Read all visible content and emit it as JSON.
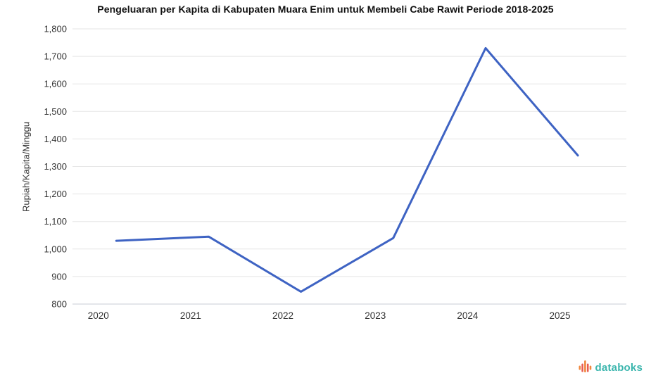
{
  "chart_data": {
    "type": "line",
    "title": "Pengeluaran per Kapita di Kabupaten Muara Enim untuk Membeli Cabe Rawit Periode 2018-2025",
    "xlabel": "",
    "ylabel": "Rupiah/Kapita/Minggu",
    "categories": [
      "2020",
      "2021",
      "2022",
      "2023",
      "2024",
      "2025"
    ],
    "series": [
      {
        "name": "",
        "values": [
          1030,
          1045,
          845,
          1040,
          1730,
          1340
        ],
        "color": "#3e63c3"
      }
    ],
    "ylim": [
      800,
      1800
    ],
    "ytick_step": 100,
    "ytick_labels": [
      "800",
      "900",
      "1,000",
      "1,100",
      "1,200",
      "1,300",
      "1,400",
      "1,500",
      "1,600",
      "1,700",
      "1,800"
    ],
    "grid": true,
    "legend": false,
    "markers": "none",
    "line_width": 3,
    "gridline_color": "#e5e5e5",
    "axis_line_color": "#c8cdd6",
    "tick_label_color": "#333333"
  },
  "branding": {
    "logo_text": "databoks",
    "logo_text_color": "#3cb6ae",
    "logo_bar_colors": [
      "#f0883e",
      "#e85c50",
      "#f0883e",
      "#e85c50",
      "#f0883e"
    ]
  }
}
